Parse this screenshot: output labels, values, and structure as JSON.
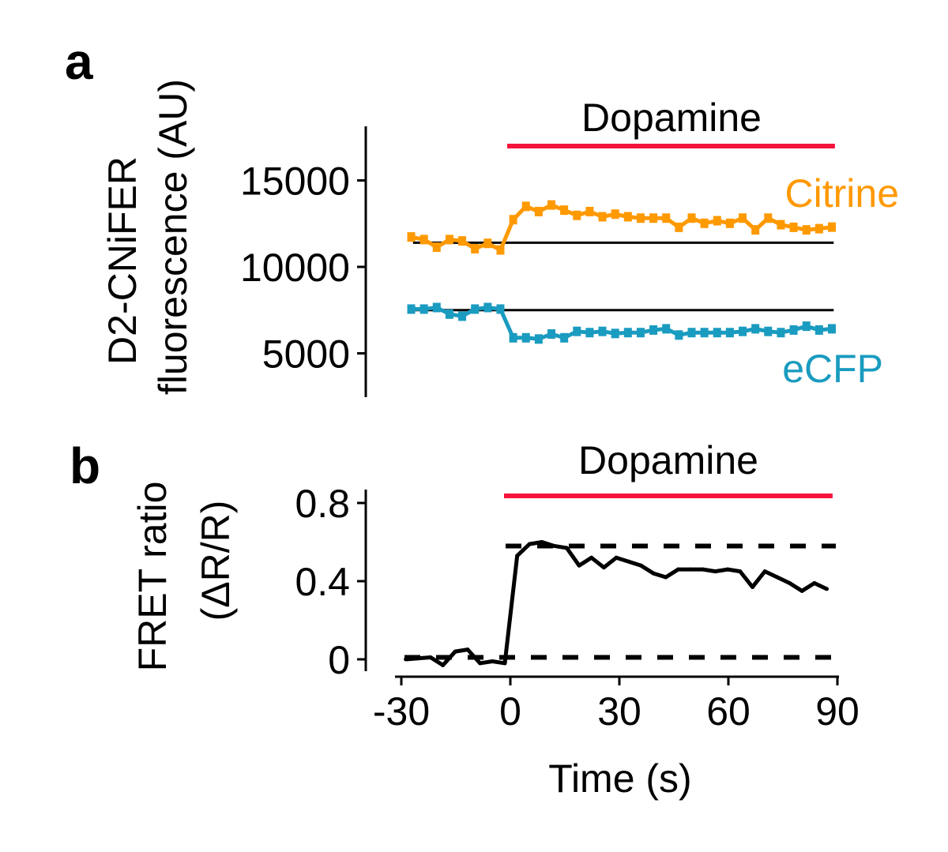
{
  "colors": {
    "citrine": "#FF9900",
    "ecfp": "#1A9BC0",
    "dopamine": "#F5143C",
    "fret": "#000000"
  },
  "chart_data": [
    {
      "panel": "a",
      "type": "line",
      "ylabel_line1": "D2-CNiFER",
      "ylabel_line2": "fluorescence (AU)",
      "ylim": [
        2500,
        18000
      ],
      "xlim": [
        -30,
        90
      ],
      "yticks": [
        5000,
        10000,
        15000
      ],
      "ytick_labels": [
        "5000",
        "10000",
        "15000"
      ],
      "annotation": {
        "label": "Dopamine",
        "start": 0,
        "end": 90
      },
      "series": [
        {
          "name": "Citrine",
          "color": "#FF9900",
          "baseline": 11400,
          "x": [
            -27,
            -23.5,
            -20,
            -16.5,
            -13,
            -9.5,
            -6,
            -2.5,
            1,
            4.5,
            8,
            11.5,
            15,
            18.5,
            22,
            25.5,
            29,
            32.5,
            36,
            39.5,
            43,
            46.5,
            50,
            53.5,
            57,
            60.5,
            64,
            67.5,
            71,
            74.5,
            78,
            81.5,
            85,
            88.5
          ],
          "y": [
            11730,
            11580,
            11140,
            11580,
            11500,
            11050,
            11360,
            10980,
            12730,
            13500,
            13200,
            13580,
            13280,
            12980,
            13200,
            12900,
            13050,
            12900,
            12820,
            12820,
            12820,
            12290,
            12820,
            12520,
            12670,
            12520,
            12820,
            12140,
            12820,
            12440,
            12290,
            12140,
            12210,
            12300
          ]
        },
        {
          "name": "eCFP",
          "color": "#1A9BC0",
          "baseline": 7500,
          "x": [
            -27,
            -23.5,
            -20,
            -16.5,
            -13,
            -9.5,
            -6,
            -2.5,
            1,
            4.5,
            8,
            11.5,
            15,
            18.5,
            22,
            25.5,
            29,
            32.5,
            36,
            39.5,
            43,
            46.5,
            50,
            53.5,
            57,
            60.5,
            64,
            67.5,
            71,
            74.5,
            78,
            81.5,
            85,
            88.5
          ],
          "y": [
            7560,
            7560,
            7650,
            7270,
            7150,
            7560,
            7650,
            7560,
            5900,
            5900,
            5830,
            6120,
            5900,
            6270,
            6200,
            6270,
            6150,
            6200,
            6200,
            6350,
            6420,
            6060,
            6200,
            6200,
            6200,
            6200,
            6270,
            6420,
            6270,
            6200,
            6350,
            6570,
            6350,
            6420
          ]
        }
      ]
    },
    {
      "panel": "b",
      "type": "line",
      "ylabel_line1": "FRET ratio",
      "ylabel_line2": "(ΔR/R)",
      "xlabel": "Time (s)",
      "ylim": [
        -0.1,
        0.88
      ],
      "xlim": [
        -30,
        90
      ],
      "yticks": [
        0,
        0.4,
        0.8
      ],
      "ytick_labels": [
        "0",
        "0.4",
        "0.8"
      ],
      "xticks": [
        -30,
        0,
        30,
        60,
        90
      ],
      "xtick_labels": [
        "-30",
        "0",
        "30",
        "60",
        "90"
      ],
      "annotation": {
        "label": "Dopamine",
        "start": 0,
        "end": 90
      },
      "reference_lines": [
        0.01,
        0.58
      ],
      "series": [
        {
          "name": "FRET ratio",
          "color": "#000000",
          "x": [
            -28.5,
            -25.1,
            -21.7,
            -18.3,
            -14.9,
            -11.5,
            -8.1,
            -4.7,
            -1.3,
            2.1,
            5.5,
            8.9,
            12.3,
            15.7,
            19.1,
            22.5,
            25.9,
            29.3,
            32.7,
            36.1,
            39.5,
            42.9,
            46.3,
            49.7,
            53.1,
            56.5,
            59.9,
            63.3,
            66.7,
            70.1,
            73.5,
            76.9,
            80.3,
            83.7,
            87.1
          ],
          "y": [
            0,
            0.005,
            0.01,
            -0.03,
            0.04,
            0.05,
            -0.02,
            -0.01,
            -0.02,
            0.53,
            0.59,
            0.6,
            0.58,
            0.57,
            0.48,
            0.52,
            0.47,
            0.52,
            0.5,
            0.48,
            0.44,
            0.42,
            0.46,
            0.46,
            0.46,
            0.45,
            0.46,
            0.45,
            0.37,
            0.45,
            0.42,
            0.39,
            0.35,
            0.39,
            0.36
          ]
        }
      ]
    }
  ]
}
